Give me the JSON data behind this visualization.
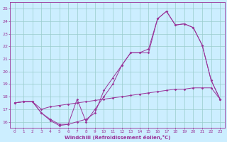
{
  "xlabel": "Windchill (Refroidissement éolien,°C)",
  "bg_color": "#cceeff",
  "line_color": "#993399",
  "grid_color": "#99cccc",
  "xlim": [
    -0.5,
    23.5
  ],
  "ylim": [
    15.5,
    25.5
  ],
  "yticks": [
    16,
    17,
    18,
    19,
    20,
    21,
    22,
    23,
    24,
    25
  ],
  "xticks": [
    0,
    1,
    2,
    3,
    4,
    5,
    6,
    7,
    8,
    9,
    10,
    11,
    12,
    13,
    14,
    15,
    16,
    17,
    18,
    19,
    20,
    21,
    22,
    23
  ],
  "series1_x": [
    0,
    1,
    2,
    3,
    4,
    5,
    6,
    7,
    8,
    9,
    10,
    11,
    12,
    13,
    14,
    15,
    16,
    17,
    18,
    19,
    20,
    21,
    22,
    23
  ],
  "series1_y": [
    17.5,
    17.6,
    17.6,
    17.0,
    17.2,
    17.3,
    17.4,
    17.5,
    17.6,
    17.7,
    17.8,
    17.9,
    18.0,
    18.1,
    18.2,
    18.3,
    18.4,
    18.5,
    18.6,
    18.6,
    18.7,
    18.7,
    18.7,
    17.8
  ],
  "series2_x": [
    0,
    1,
    2,
    3,
    4,
    5,
    6,
    7,
    8,
    9,
    10,
    11,
    12,
    13,
    14,
    15,
    16,
    17,
    18,
    19,
    20,
    21,
    22,
    23
  ],
  "series2_y": [
    17.5,
    17.6,
    17.6,
    16.7,
    16.1,
    15.7,
    15.8,
    17.8,
    16.0,
    17.0,
    18.0,
    19.0,
    20.5,
    21.5,
    21.5,
    21.5,
    24.2,
    24.8,
    23.7,
    23.8,
    23.5,
    22.1,
    19.3,
    17.8
  ],
  "series3_x": [
    0,
    1,
    2,
    3,
    4,
    5,
    6,
    7,
    8,
    9,
    10,
    11,
    12,
    13,
    14,
    15,
    16,
    17,
    18,
    19,
    20,
    21,
    22,
    23
  ],
  "series3_y": [
    17.5,
    17.6,
    17.6,
    16.7,
    16.2,
    15.8,
    15.8,
    16.0,
    16.2,
    16.7,
    18.5,
    19.5,
    20.5,
    21.5,
    21.5,
    21.8,
    24.2,
    24.8,
    23.7,
    23.8,
    23.5,
    22.1,
    19.3,
    17.8
  ]
}
